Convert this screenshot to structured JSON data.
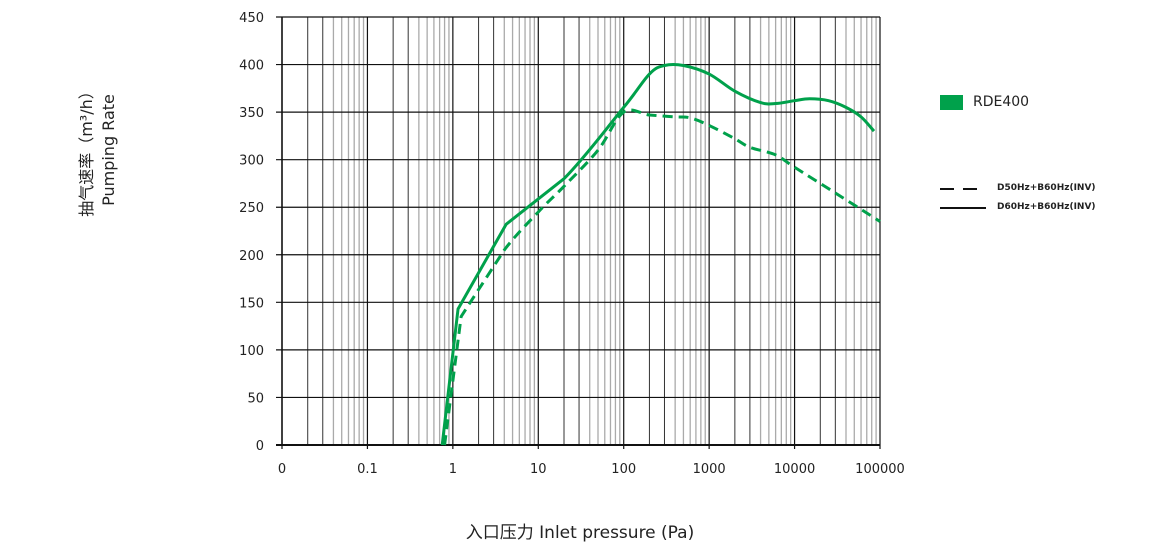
{
  "chart_data": {
    "type": "line",
    "title": "",
    "xlabel": "入口压力 Inlet pressure (Pa)",
    "ylabel_cn": "抽气速率（m³/h）",
    "ylabel_en": "Pumping Rate",
    "x_scale": "log",
    "xlim": [
      0.01,
      100000
    ],
    "ylim": [
      0,
      450
    ],
    "x_tick_labels": [
      "0",
      "0.1",
      "1",
      "10",
      "100",
      "1000",
      "10000",
      "100000"
    ],
    "x_tick_values": [
      0.01,
      0.1,
      1,
      10,
      100,
      1000,
      10000,
      100000
    ],
    "y_ticks": [
      0,
      50,
      100,
      150,
      200,
      250,
      300,
      350,
      400,
      450
    ],
    "grid": true,
    "legend_placement": "right",
    "model": "RDE400",
    "model_color": "#00a14b",
    "series": [
      {
        "name": "D50Hz+B60Hz(INV)",
        "style": "dashed",
        "color": "#00a14b",
        "x": [
          0.8,
          1.25,
          1.6,
          4,
          10,
          20,
          50,
          100,
          200,
          400,
          600,
          1000,
          2000,
          3000,
          6000,
          10000,
          30000,
          100000
        ],
        "y": [
          0,
          135,
          150,
          205,
          245,
          272,
          310,
          350,
          347,
          345,
          344,
          336,
          322,
          313,
          305,
          292,
          265,
          235
        ]
      },
      {
        "name": "D60Hz+B60Hz(INV)",
        "style": "solid",
        "color": "#00a14b",
        "x": [
          0.75,
          1.15,
          4.2,
          20,
          100,
          200,
          300,
          500,
          1000,
          2000,
          4000,
          6000,
          10000,
          15000,
          25000,
          40000,
          60000,
          85000
        ],
        "y": [
          0,
          143,
          232,
          280,
          355,
          390,
          399,
          399,
          390,
          372,
          360,
          359,
          362,
          364,
          362,
          355,
          345,
          330
        ]
      }
    ]
  }
}
